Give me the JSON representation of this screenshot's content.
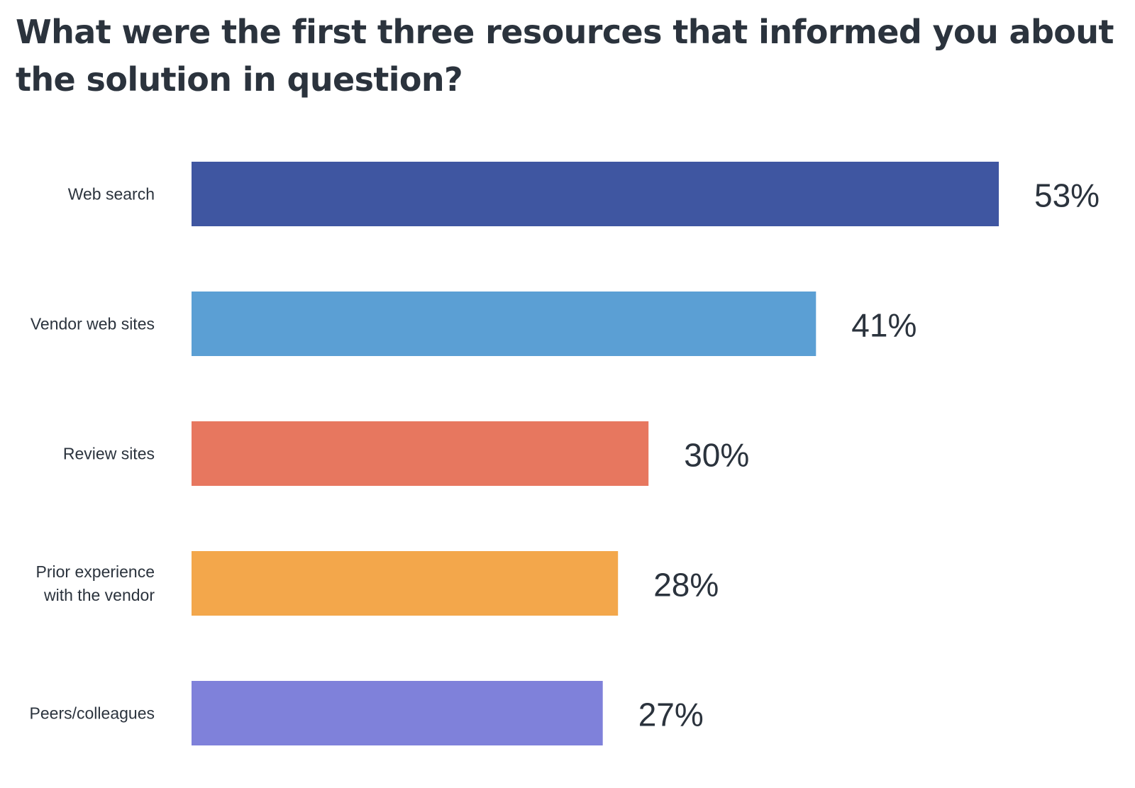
{
  "chart_data": {
    "type": "bar",
    "orientation": "horizontal",
    "title": "What were the first three resources that informed you about the solution in question?",
    "xlabel": "",
    "ylabel": "",
    "xlim": [
      0,
      53
    ],
    "grid": false,
    "legend": "none",
    "value_suffix": "%",
    "categories": [
      [
        "Web search"
      ],
      [
        "Vendor web sites"
      ],
      [
        "Review sites"
      ],
      [
        "Prior experience",
        "with the vendor"
      ],
      [
        "Peers/colleagues"
      ]
    ],
    "values": [
      53,
      41,
      30,
      28,
      27
    ],
    "colors": [
      "#3f56a1",
      "#5b9fd4",
      "#e7775f",
      "#f3a74b",
      "#7f81da"
    ]
  }
}
